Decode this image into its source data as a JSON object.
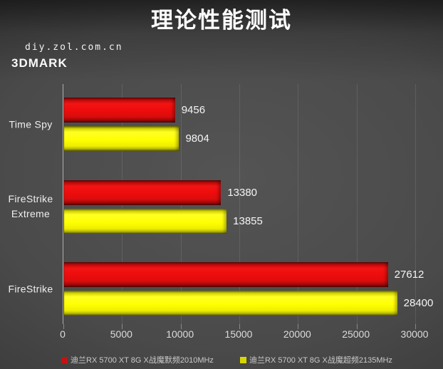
{
  "title": "理论性能测试",
  "watermark": "diy.zol.com.cn",
  "section_label": "3DMARK",
  "colors": {
    "red_series": "#ee0c0c",
    "yellow_series": "#ffff00",
    "legend_red_swatch": "#c41212",
    "legend_yellow_swatch": "#d6d600",
    "background": "#4a4a4a",
    "text": "#ffffff"
  },
  "chart_data": {
    "type": "bar",
    "orientation": "horizontal",
    "title": "理论性能测试",
    "subtitle": "3DMARK",
    "categories": [
      "Time Spy",
      "FireStrike Extreme",
      "FireStrike"
    ],
    "series": [
      {
        "name": "迪兰RX 5700 XT 8G X战魔默频2010MHz",
        "color_key": "red",
        "values": [
          9456,
          13380,
          27612
        ]
      },
      {
        "name": "迪兰RX 5700 XT 8G X战魔超频2135MHz",
        "color_key": "yellow",
        "values": [
          9804,
          13855,
          28400
        ]
      }
    ],
    "xlabel": "",
    "ylabel": "",
    "xlim": [
      0,
      30000
    ],
    "x_ticks": [
      0,
      5000,
      10000,
      15000,
      20000,
      25000,
      30000
    ],
    "grid": true,
    "value_labels": true,
    "legend_position": "bottom"
  }
}
